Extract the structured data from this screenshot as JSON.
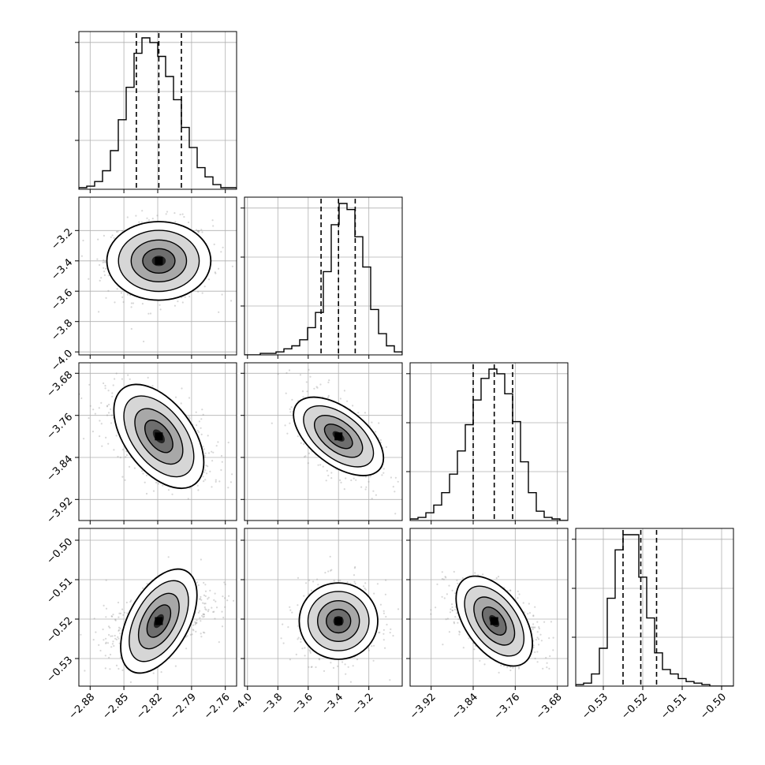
{
  "chart_data": {
    "type": "corner",
    "title": "",
    "parameters": [
      {
        "range": [
          -2.89,
          -2.75
        ],
        "ticks": [
          -2.88,
          -2.85,
          -2.82,
          -2.79,
          -2.76
        ],
        "tick_labels": [
          "−2.88",
          "−2.85",
          "−2.82",
          "−2.79",
          "−2.76"
        ],
        "quantiles": [
          -2.839,
          -2.819,
          -2.799
        ],
        "median": -2.819,
        "sigma": 0.0205,
        "hist_counts": [
          1,
          2,
          5,
          12,
          25,
          45,
          66,
          88,
          98,
          95,
          86,
          73,
          58,
          40,
          27,
          14,
          8,
          3,
          1,
          1
        ]
      },
      {
        "range": [
          -4.02,
          -2.98
        ],
        "ticks": [
          -4.0,
          -3.8,
          -3.6,
          -3.4,
          -3.2
        ],
        "tick_labels": [
          "−4.0",
          "−3.8",
          "−3.6",
          "−3.4",
          "−3.2"
        ],
        "quantiles": [
          -3.515,
          -3.4,
          -3.29
        ],
        "median": -3.4,
        "sigma": 0.115,
        "hist_counts": [
          0,
          0,
          1,
          1,
          2,
          4,
          6,
          10,
          18,
          28,
          55,
          86,
          100,
          96,
          78,
          58,
          30,
          14,
          6,
          2
        ]
      },
      {
        "range": [
          -3.96,
          -3.66
        ],
        "ticks": [
          -3.92,
          -3.84,
          -3.76,
          -3.68
        ],
        "tick_labels": [
          "−3.92",
          "−3.84",
          "−3.76",
          "−3.68"
        ],
        "quantiles": [
          -3.84,
          -3.8,
          -3.765
        ],
        "median": -3.8,
        "sigma": 0.038,
        "hist_counts": [
          1,
          2,
          5,
          10,
          18,
          30,
          45,
          62,
          78,
          92,
          98,
          95,
          82,
          64,
          38,
          18,
          6,
          2,
          1,
          0
        ]
      },
      {
        "range": [
          -0.537,
          -0.497
        ],
        "ticks": [
          -0.53,
          -0.52,
          -0.51,
          -0.5
        ],
        "tick_labels": [
          "−0.53",
          "−0.52",
          "−0.51",
          "−0.50"
        ],
        "quantiles": [
          -0.525,
          -0.5205,
          -0.5165
        ],
        "median": -0.5205,
        "sigma": 0.0043,
        "hist_counts": [
          1,
          2,
          8,
          25,
          58,
          90,
          100,
          100,
          72,
          45,
          22,
          11,
          8,
          5,
          3,
          2,
          1,
          0,
          0,
          0
        ]
      }
    ],
    "correlations": [
      [
        1.0,
        0.0,
        -0.5,
        0.5
      ],
      [
        0.0,
        1.0,
        -0.55,
        0.0
      ],
      [
        -0.5,
        -0.55,
        1.0,
        -0.5
      ],
      [
        0.5,
        0.0,
        -0.5,
        1.0
      ]
    ],
    "axis_labels": [
      "",
      "",
      "",
      ""
    ],
    "grid": true
  }
}
